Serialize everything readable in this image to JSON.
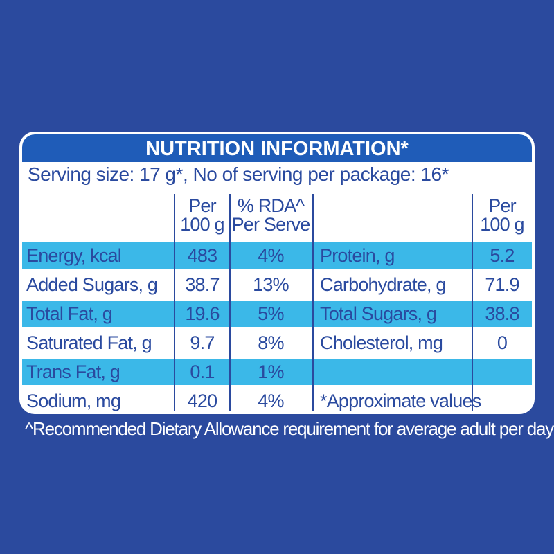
{
  "header": {
    "title": "NUTRITION INFORMATION*",
    "serving": "Serving size: 17 g*, No of serving per package: 16*"
  },
  "table": {
    "headers": {
      "per100g": [
        "Per",
        "100 g"
      ],
      "rda": [
        "% RDA^",
        "Per Serve"
      ],
      "per100g_2": [
        "Per",
        "100 g"
      ]
    },
    "rows": [
      {
        "label": "Energy, kcal",
        "per100g": "483",
        "rda": "4%",
        "label2": "Protein, g",
        "per100g_2": "5.2"
      },
      {
        "label": "Added Sugars, g",
        "per100g": "38.7",
        "rda": "13%",
        "label2": "Carbohydrate, g",
        "per100g_2": "71.9"
      },
      {
        "label": "Total Fat, g",
        "per100g": "19.6",
        "rda": "5%",
        "label2": "Total Sugars, g",
        "per100g_2": "38.8"
      },
      {
        "label": "Saturated Fat, g",
        "per100g": "9.7",
        "rda": "8%",
        "label2": "Cholesterol, mg",
        "per100g_2": "0"
      },
      {
        "label": "Trans Fat, g",
        "per100g": "0.1",
        "rda": "1%"
      },
      {
        "label": "Sodium, mg",
        "per100g": "420",
        "rda": "4%",
        "note": "*Approximate values"
      }
    ]
  },
  "footnote": "^Recommended Dietary Allowance requirement for average adult per day"
}
